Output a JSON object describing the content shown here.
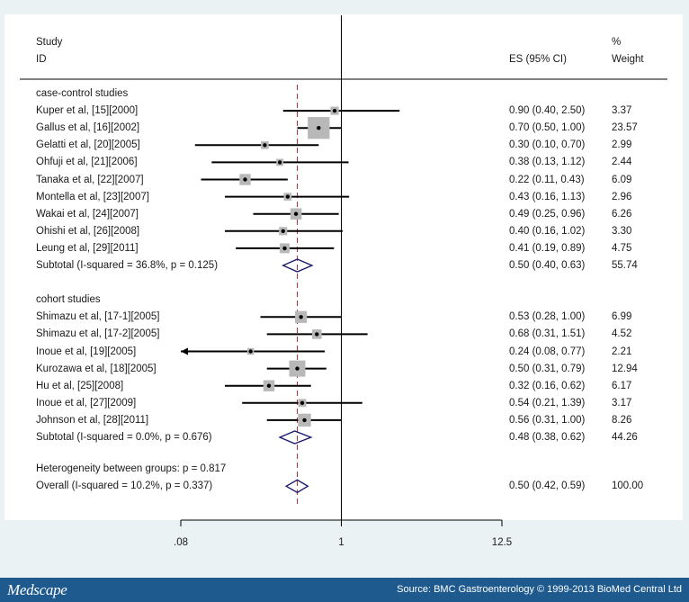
{
  "header": {
    "study_line1": "Study",
    "study_line2": "ID",
    "es_label": "ES (95% CI)",
    "weight_line1": "%",
    "weight_line2": "Weight"
  },
  "footer": {
    "logo": "Medscape",
    "source": "Source: BMC Gastroenterology © 1999-2013 BioMed Central Ltd"
  },
  "colors": {
    "box": "#b8b8b8",
    "diamond": "#1a1a6e",
    "dashed_line": "#b03030",
    "footer_bg": "#1f5a8e"
  },
  "chart_data": {
    "type": "forest",
    "x_scale": "log",
    "xlim": [
      0.08,
      12.5
    ],
    "xticks": [
      ".08",
      "1",
      "12.5"
    ],
    "null_line": 1,
    "overall_es_line": 0.5,
    "groups": [
      {
        "label": "case-control studies",
        "studies": [
          {
            "id": "Kuper et al, [15][2000]",
            "es": 0.9,
            "lo": 0.4,
            "hi": 2.5,
            "es_text": "0.90 (0.40, 2.50)",
            "weight": "3.37"
          },
          {
            "id": "Gallus et al, [16][2002]",
            "es": 0.7,
            "lo": 0.5,
            "hi": 1.0,
            "es_text": "0.70 (0.50, 1.00)",
            "weight": "23.57"
          },
          {
            "id": "Gelatti et al, [20][2005]",
            "es": 0.3,
            "lo": 0.1,
            "hi": 0.7,
            "es_text": "0.30 (0.10, 0.70)",
            "weight": "2.99"
          },
          {
            "id": "Ohfuji et al, [21][2006]",
            "es": 0.38,
            "lo": 0.13,
            "hi": 1.12,
            "es_text": "0.38 (0.13, 1.12)",
            "weight": "2.44"
          },
          {
            "id": "Tanaka et al, [22][2007]",
            "es": 0.22,
            "lo": 0.11,
            "hi": 0.43,
            "es_text": "0.22 (0.11, 0.43)",
            "weight": "6.09"
          },
          {
            "id": "Montella et al, [23][2007]",
            "es": 0.43,
            "lo": 0.16,
            "hi": 1.13,
            "es_text": "0.43 (0.16, 1.13)",
            "weight": "2.96"
          },
          {
            "id": "Wakai et al, [24][2007]",
            "es": 0.49,
            "lo": 0.25,
            "hi": 0.96,
            "es_text": "0.49 (0.25, 0.96)",
            "weight": "6.26"
          },
          {
            "id": "Ohishi et al, [26][2008]",
            "es": 0.4,
            "lo": 0.16,
            "hi": 1.02,
            "es_text": "0.40 (0.16, 1.02)",
            "weight": "3.30"
          },
          {
            "id": "Leung et al, [29][2011]",
            "es": 0.41,
            "lo": 0.19,
            "hi": 0.89,
            "es_text": "0.41 (0.19, 0.89)",
            "weight": "4.75"
          }
        ],
        "subtotal": {
          "label": "Subtotal  (I-squared = 36.8%, p = 0.125)",
          "es": 0.5,
          "lo": 0.4,
          "hi": 0.63,
          "es_text": "0.50 (0.40, 0.63)",
          "weight": "55.74"
        }
      },
      {
        "label": "cohort studies",
        "studies": [
          {
            "id": "Shimazu et al, [17-1][2005]",
            "es": 0.53,
            "lo": 0.28,
            "hi": 1.0,
            "es_text": "0.53 (0.28, 1.00)",
            "weight": "6.99"
          },
          {
            "id": "Shimazu et al, [17-2][2005]",
            "es": 0.68,
            "lo": 0.31,
            "hi": 1.51,
            "es_text": "0.68 (0.31, 1.51)",
            "weight": "4.52"
          },
          {
            "id": "Inoue et al, [19][2005]",
            "es": 0.24,
            "lo": 0.08,
            "hi": 0.77,
            "es_text": "0.24 (0.08, 0.77)",
            "weight": "2.21",
            "arrow_left": true
          },
          {
            "id": "Kurozawa et al, [18][2005]",
            "es": 0.5,
            "lo": 0.31,
            "hi": 0.79,
            "es_text": "0.50 (0.31, 0.79)",
            "weight": "12.94"
          },
          {
            "id": "Hu et al, [25][2008]",
            "es": 0.32,
            "lo": 0.16,
            "hi": 0.62,
            "es_text": "0.32 (0.16, 0.62)",
            "weight": "6.17"
          },
          {
            "id": "Inoue et al, [27][2009]",
            "es": 0.54,
            "lo": 0.21,
            "hi": 1.39,
            "es_text": "0.54 (0.21, 1.39)",
            "weight": "3.17"
          },
          {
            "id": "Johnson et al, [28][2011]",
            "es": 0.56,
            "lo": 0.31,
            "hi": 1.0,
            "es_text": "0.56 (0.31, 1.00)",
            "weight": "8.26"
          }
        ],
        "subtotal": {
          "label": "Subtotal  (I-squared = 0.0%, p = 0.676)",
          "es": 0.48,
          "lo": 0.38,
          "hi": 0.62,
          "es_text": "0.48 (0.38, 0.62)",
          "weight": "44.26"
        }
      }
    ],
    "heterogeneity": "Heterogeneity between groups: p = 0.817",
    "overall": {
      "label": "Overall  (I-squared = 10.2%, p = 0.337)",
      "es": 0.5,
      "lo": 0.42,
      "hi": 0.59,
      "es_text": "0.50 (0.42, 0.59)",
      "weight": "100.00"
    }
  }
}
